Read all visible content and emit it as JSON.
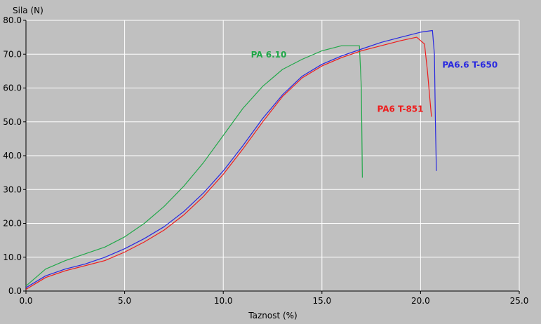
{
  "chart_data": {
    "type": "line",
    "ylabel": "Sila (N)",
    "xlabel": "Taznost (%)",
    "xlim": [
      0,
      25
    ],
    "ylim": [
      0,
      80
    ],
    "xticks": [
      "0.0",
      "5.0",
      "10.0",
      "15.0",
      "20.0",
      "25.0"
    ],
    "yticks": [
      "0.0",
      "10.0",
      "20.0",
      "30.0",
      "40.0",
      "50.0",
      "60.0",
      "70.0",
      "80.0"
    ],
    "grid": true,
    "legend": "inline labels",
    "colors": {
      "background": "#c0c0c0",
      "grid": "#ffffff",
      "axis": "#000000"
    },
    "series": [
      {
        "name": "PA 6.10",
        "color": "#22a84a",
        "x": [
          0,
          0.5,
          1,
          2,
          3,
          4,
          5,
          6,
          7,
          8,
          9,
          10,
          11,
          12,
          13,
          14,
          15,
          16,
          16.5,
          16.9,
          17.0,
          17.05
        ],
        "y": [
          1.5,
          4,
          6.5,
          9,
          11,
          13,
          16,
          20,
          25,
          31,
          38,
          46,
          54,
          60.5,
          65.5,
          68.5,
          71,
          72.5,
          72.5,
          72.5,
          60,
          33.5
        ]
      },
      {
        "name": "PA6 T-851",
        "color": "#ee1c1c",
        "x": [
          0,
          1,
          2,
          3,
          4,
          5,
          6,
          7,
          8,
          9,
          10,
          11,
          12,
          13,
          14,
          15,
          16,
          17,
          18,
          19,
          19.8,
          20.2,
          20.35,
          20.45,
          20.55
        ],
        "y": [
          0.5,
          4,
          6,
          7.5,
          9,
          11.5,
          14.5,
          18,
          22.5,
          28,
          34.5,
          42,
          50,
          57.5,
          63,
          66.5,
          69,
          71,
          72.5,
          74,
          75,
          73,
          65,
          58,
          51.5
        ]
      },
      {
        "name": "PA6.6 T-650",
        "color": "#2828e0",
        "x": [
          0,
          1,
          2,
          3,
          4,
          5,
          6,
          7,
          8,
          9,
          10,
          11,
          12,
          13,
          14,
          15,
          16,
          17,
          18,
          19,
          20,
          20.6,
          20.7,
          20.75,
          20.8
        ],
        "y": [
          1,
          4.5,
          6.5,
          8,
          10,
          12.5,
          15.5,
          19,
          23.5,
          29,
          35.5,
          43,
          51,
          58,
          63.5,
          67,
          69.5,
          71.5,
          73.5,
          75,
          76.5,
          77,
          70,
          50,
          35.5
        ]
      }
    ]
  }
}
